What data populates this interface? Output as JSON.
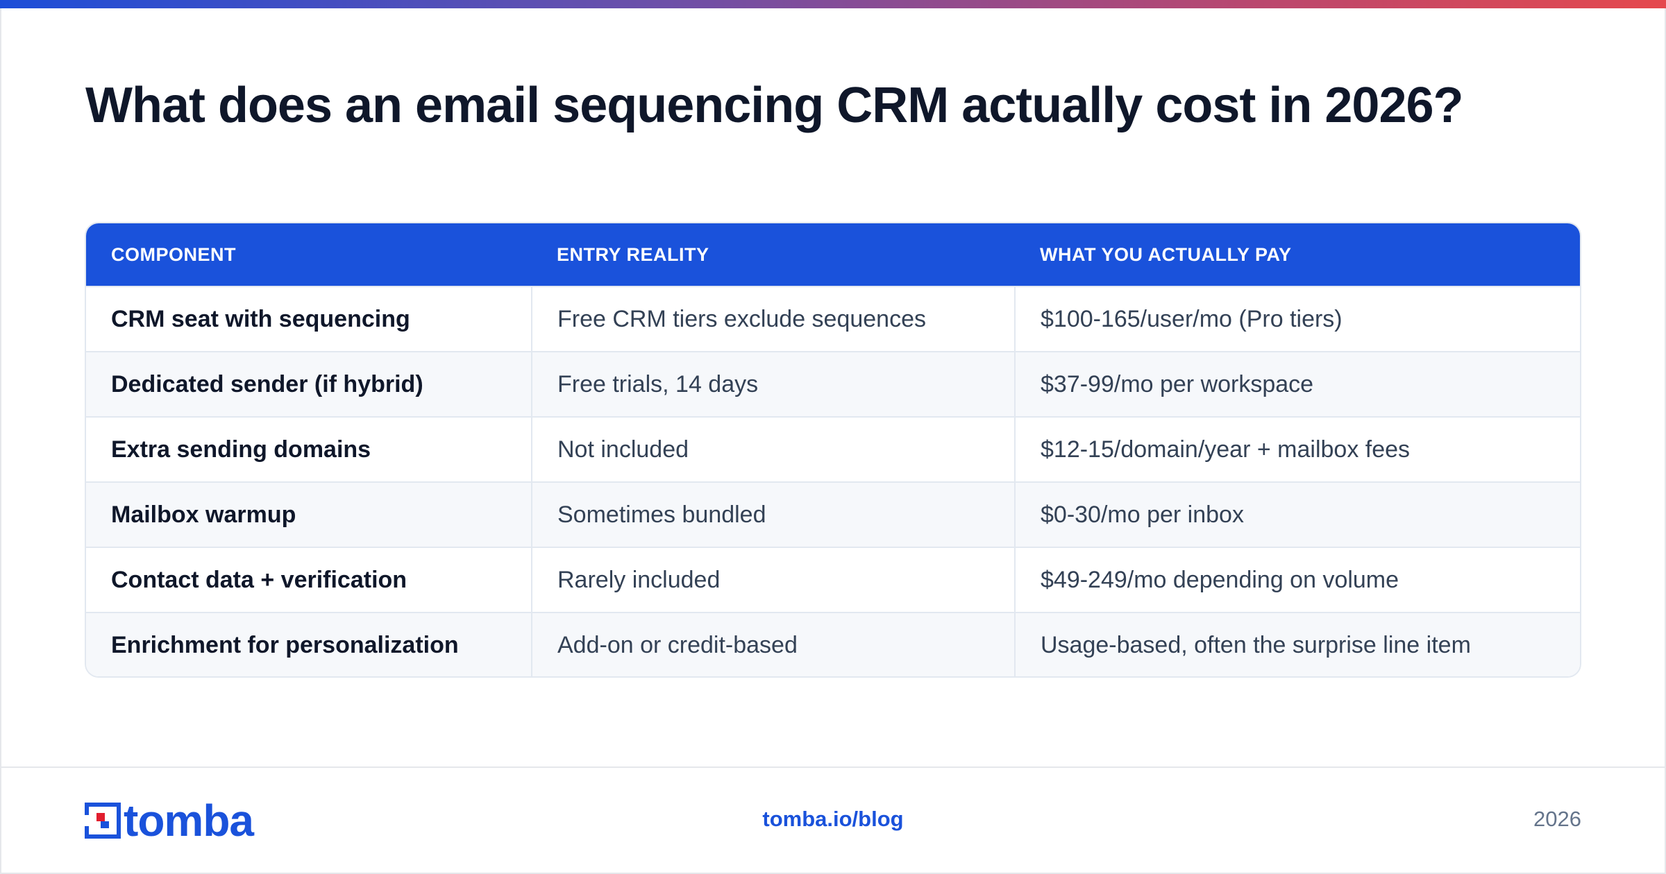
{
  "title": "What does an email sequencing CRM actually cost in 2026?",
  "table": {
    "headers": [
      "COMPONENT",
      "ENTRY REALITY",
      "WHAT YOU ACTUALLY PAY"
    ],
    "rows": [
      [
        "CRM seat with sequencing",
        "Free CRM tiers exclude sequences",
        "$100-165/user/mo (Pro tiers)"
      ],
      [
        "Dedicated sender (if hybrid)",
        "Free trials, 14 days",
        "$37-99/mo per workspace"
      ],
      [
        "Extra sending domains",
        "Not included",
        "$12-15/domain/year + mailbox fees"
      ],
      [
        "Mailbox warmup",
        "Sometimes bundled",
        "$0-30/mo per inbox"
      ],
      [
        "Contact data + verification",
        "Rarely included",
        "$49-249/mo depending on volume"
      ],
      [
        "Enrichment for personalization",
        "Add-on or credit-based",
        "Usage-based, often the surprise line item"
      ]
    ]
  },
  "footer": {
    "logo_text": "tomba",
    "link": "tomba.io/blog",
    "year": "2026"
  },
  "colors": {
    "accent": "#1a52db",
    "logo_red": "#e11d2e",
    "gradient_start": "#1d4ed8",
    "gradient_end": "#e5484d"
  }
}
